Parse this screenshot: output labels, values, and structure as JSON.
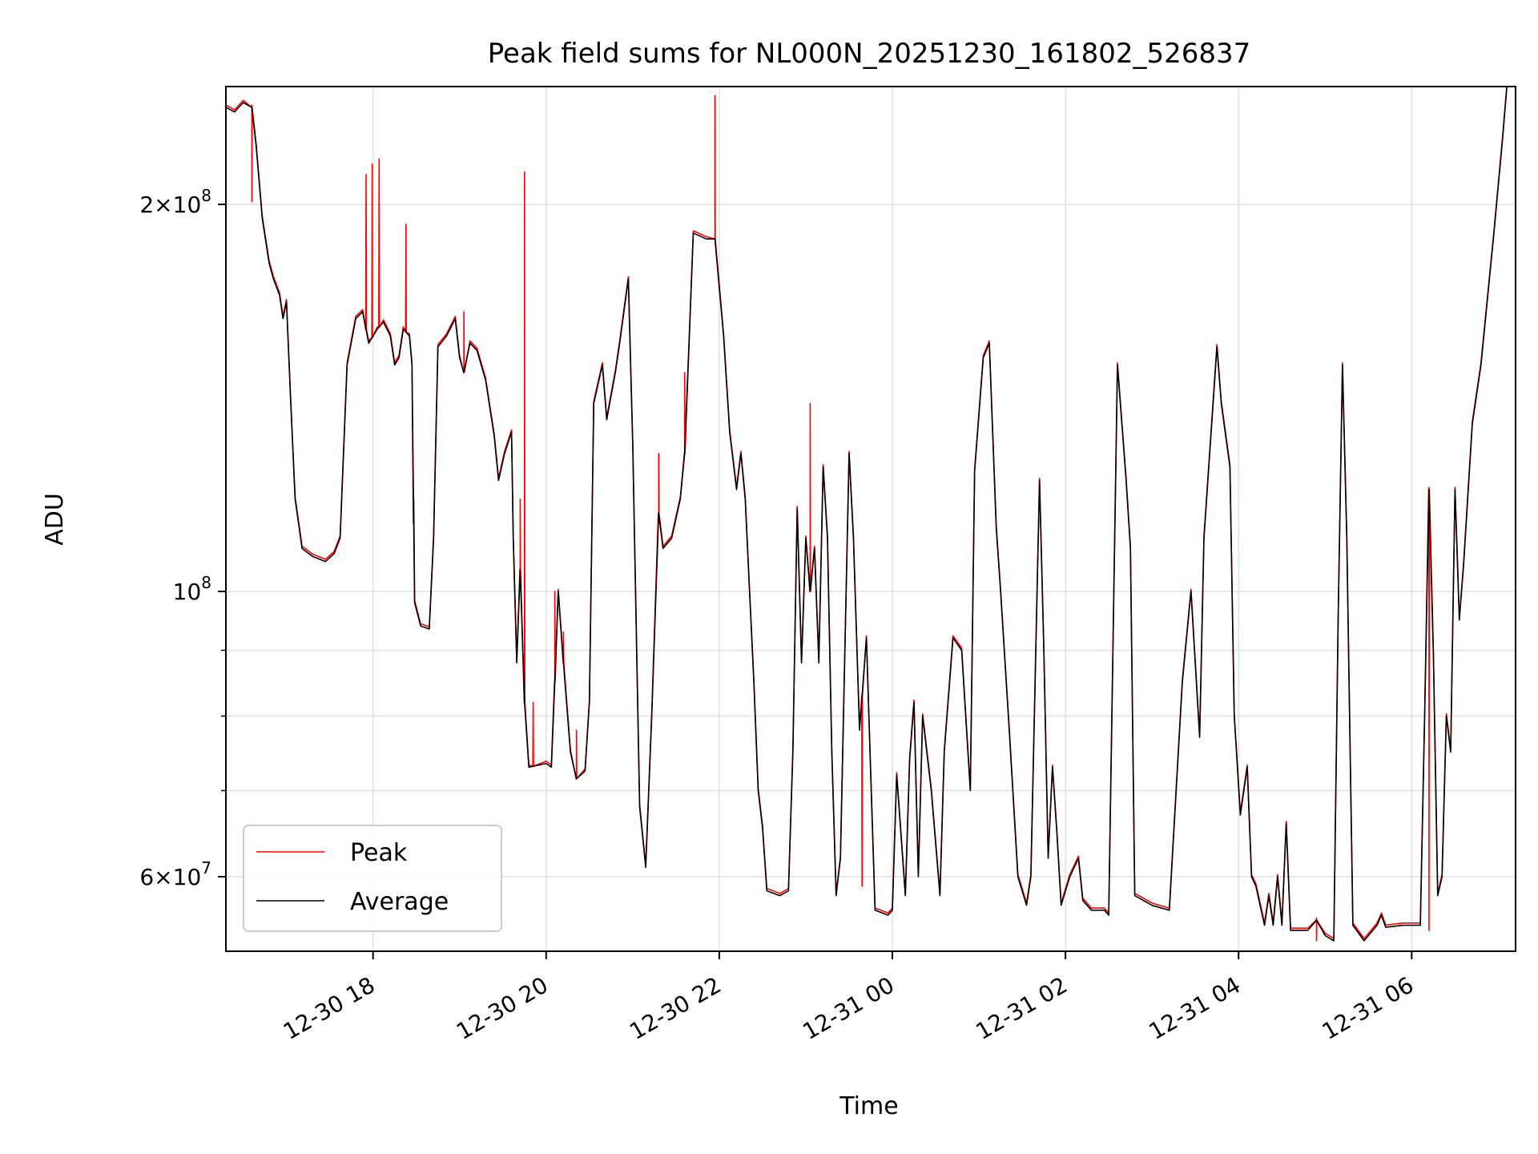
{
  "chart_data": {
    "type": "line",
    "title": "Peak field sums for NL000N_20251230_161802_526837",
    "xlabel": "Time",
    "ylabel": "ADU",
    "yscale": "log",
    "ylim": [
      52500000,
      247000000
    ],
    "xlim_hours": [
      16.3,
      31.2
    ],
    "grid": true,
    "legend_position": "lower-left",
    "x_ticks": [
      {
        "hour": 18,
        "label": "12-30 18"
      },
      {
        "hour": 20,
        "label": "12-30 20"
      },
      {
        "hour": 22,
        "label": "12-30 22"
      },
      {
        "hour": 24,
        "label": "12-31 00"
      },
      {
        "hour": 26,
        "label": "12-31 02"
      },
      {
        "hour": 28,
        "label": "12-31 04"
      },
      {
        "hour": 30,
        "label": "12-31 06"
      }
    ],
    "y_major_ticks": [
      {
        "value": 60000000,
        "base": "6",
        "exp": "7"
      },
      {
        "value": 100000000,
        "base": "10",
        "exp": "8"
      },
      {
        "value": 200000000,
        "base": "2",
        "exp": "8"
      }
    ],
    "y_minor_gridlines": [
      70000000,
      80000000,
      90000000
    ],
    "series": [
      {
        "name": "Peak",
        "color": "#ff0000",
        "spikes": [
          [
            16.6,
            201000000
          ],
          [
            17.92,
            211000000
          ],
          [
            17.99,
            215000000
          ],
          [
            18.07,
            217000000
          ],
          [
            18.38,
            193000000
          ],
          [
            18.47,
            118000000
          ],
          [
            19.05,
            165000000
          ],
          [
            19.7,
            118000000
          ],
          [
            19.75,
            212000000
          ],
          [
            19.85,
            82000000
          ],
          [
            20.1,
            100000000
          ],
          [
            20.2,
            93000000
          ],
          [
            20.35,
            78000000
          ],
          [
            21.3,
            128000000
          ],
          [
            21.6,
            148000000
          ],
          [
            21.95,
            243000000
          ],
          [
            23.05,
            140000000
          ],
          [
            23.65,
            59000000
          ],
          [
            28.9,
            53500000
          ],
          [
            30.2,
            54500000
          ]
        ]
      },
      {
        "name": "Average",
        "color": "#000000",
        "points": [
          [
            16.3,
            238000000
          ],
          [
            16.4,
            236000000
          ],
          [
            16.5,
            240000000
          ],
          [
            16.6,
            238000000
          ],
          [
            16.65,
            222000000
          ],
          [
            16.72,
            195000000
          ],
          [
            16.8,
            180000000
          ],
          [
            16.85,
            175000000
          ],
          [
            16.92,
            170000000
          ],
          [
            16.96,
            163000000
          ],
          [
            17.0,
            168000000
          ],
          [
            17.05,
            140000000
          ],
          [
            17.1,
            118000000
          ],
          [
            17.18,
            108000000
          ],
          [
            17.3,
            106500000
          ],
          [
            17.45,
            105500000
          ],
          [
            17.55,
            107000000
          ],
          [
            17.62,
            110000000
          ],
          [
            17.7,
            150000000
          ],
          [
            17.8,
            163000000
          ],
          [
            17.88,
            165000000
          ],
          [
            17.95,
            156000000
          ],
          [
            18.05,
            160000000
          ],
          [
            18.12,
            162000000
          ],
          [
            18.2,
            158000000
          ],
          [
            18.25,
            150000000
          ],
          [
            18.3,
            152000000
          ],
          [
            18.35,
            160000000
          ],
          [
            18.42,
            158000000
          ],
          [
            18.45,
            150000000
          ],
          [
            18.48,
            98000000
          ],
          [
            18.55,
            94000000
          ],
          [
            18.65,
            93500000
          ],
          [
            18.7,
            110000000
          ],
          [
            18.75,
            155000000
          ],
          [
            18.85,
            158000000
          ],
          [
            18.95,
            163000000
          ],
          [
            19.0,
            152000000
          ],
          [
            19.05,
            148000000
          ],
          [
            19.12,
            156000000
          ],
          [
            19.2,
            154000000
          ],
          [
            19.3,
            146000000
          ],
          [
            19.4,
            132000000
          ],
          [
            19.45,
            122000000
          ],
          [
            19.52,
            128000000
          ],
          [
            19.6,
            133000000
          ],
          [
            19.62,
            110000000
          ],
          [
            19.66,
            88000000
          ],
          [
            19.7,
            104000000
          ],
          [
            19.75,
            82000000
          ],
          [
            19.8,
            73000000
          ],
          [
            20.0,
            73500000
          ],
          [
            20.06,
            73000000
          ],
          [
            20.1,
            85000000
          ],
          [
            20.14,
            100000000
          ],
          [
            20.2,
            88000000
          ],
          [
            20.28,
            75000000
          ],
          [
            20.35,
            71500000
          ],
          [
            20.45,
            72500000
          ],
          [
            20.5,
            82000000
          ],
          [
            20.55,
            140000000
          ],
          [
            20.65,
            150000000
          ],
          [
            20.7,
            136000000
          ],
          [
            20.8,
            148000000
          ],
          [
            20.85,
            156000000
          ],
          [
            20.95,
            175000000
          ],
          [
            21.0,
            130000000
          ],
          [
            21.08,
            68000000
          ],
          [
            21.15,
            61000000
          ],
          [
            21.22,
            80000000
          ],
          [
            21.3,
            115000000
          ],
          [
            21.35,
            108000000
          ],
          [
            21.45,
            110000000
          ],
          [
            21.55,
            118000000
          ],
          [
            21.6,
            128000000
          ],
          [
            21.7,
            190000000
          ],
          [
            21.85,
            188000000
          ],
          [
            21.95,
            188000000
          ],
          [
            22.05,
            158000000
          ],
          [
            22.12,
            133000000
          ],
          [
            22.2,
            120000000
          ],
          [
            22.25,
            128000000
          ],
          [
            22.3,
            118000000
          ],
          [
            22.35,
            100000000
          ],
          [
            22.4,
            85000000
          ],
          [
            22.45,
            70000000
          ],
          [
            22.5,
            65500000
          ],
          [
            22.55,
            58500000
          ],
          [
            22.7,
            58000000
          ],
          [
            22.8,
            58500000
          ],
          [
            22.85,
            75000000
          ],
          [
            22.9,
            116000000
          ],
          [
            22.95,
            88000000
          ],
          [
            23.0,
            110000000
          ],
          [
            23.05,
            100000000
          ],
          [
            23.1,
            108000000
          ],
          [
            23.15,
            88000000
          ],
          [
            23.2,
            125000000
          ],
          [
            23.25,
            110000000
          ],
          [
            23.3,
            75000000
          ],
          [
            23.35,
            58000000
          ],
          [
            23.4,
            62000000
          ],
          [
            23.5,
            128000000
          ],
          [
            23.55,
            110000000
          ],
          [
            23.62,
            78000000
          ],
          [
            23.7,
            92000000
          ],
          [
            23.75,
            72000000
          ],
          [
            23.8,
            56500000
          ],
          [
            23.95,
            56000000
          ],
          [
            24.0,
            56500000
          ],
          [
            24.05,
            72000000
          ],
          [
            24.15,
            58000000
          ],
          [
            24.2,
            74000000
          ],
          [
            24.25,
            82000000
          ],
          [
            24.3,
            60000000
          ],
          [
            24.35,
            80000000
          ],
          [
            24.45,
            70000000
          ],
          [
            24.55,
            58000000
          ],
          [
            24.6,
            75000000
          ],
          [
            24.7,
            92000000
          ],
          [
            24.8,
            90000000
          ],
          [
            24.9,
            70000000
          ],
          [
            24.95,
            124000000
          ],
          [
            25.05,
            152000000
          ],
          [
            25.12,
            156000000
          ],
          [
            25.2,
            112000000
          ],
          [
            25.25,
            100000000
          ],
          [
            25.35,
            78000000
          ],
          [
            25.45,
            60000000
          ],
          [
            25.55,
            57000000
          ],
          [
            25.6,
            60000000
          ],
          [
            25.7,
            122000000
          ],
          [
            25.75,
            90000000
          ],
          [
            25.8,
            62000000
          ],
          [
            25.85,
            73000000
          ],
          [
            25.9,
            65000000
          ],
          [
            25.95,
            57000000
          ],
          [
            26.05,
            60000000
          ],
          [
            26.15,
            62000000
          ],
          [
            26.2,
            57500000
          ],
          [
            26.3,
            56500000
          ],
          [
            26.45,
            56500000
          ],
          [
            26.5,
            56000000
          ],
          [
            26.6,
            150000000
          ],
          [
            26.7,
            122000000
          ],
          [
            26.75,
            108000000
          ],
          [
            26.8,
            58000000
          ],
          [
            27.0,
            57000000
          ],
          [
            27.2,
            56500000
          ],
          [
            27.35,
            85000000
          ],
          [
            27.45,
            100000000
          ],
          [
            27.55,
            77000000
          ],
          [
            27.6,
            110000000
          ],
          [
            27.75,
            155000000
          ],
          [
            27.8,
            140000000
          ],
          [
            27.9,
            125000000
          ],
          [
            27.95,
            80000000
          ],
          [
            28.02,
            67000000
          ],
          [
            28.1,
            73000000
          ],
          [
            28.15,
            60000000
          ],
          [
            28.2,
            59000000
          ],
          [
            28.3,
            55000000
          ],
          [
            28.35,
            58000000
          ],
          [
            28.4,
            55000000
          ],
          [
            28.45,
            60000000
          ],
          [
            28.5,
            55000000
          ],
          [
            28.55,
            66000000
          ],
          [
            28.6,
            54500000
          ],
          [
            28.8,
            54500000
          ],
          [
            28.9,
            55500000
          ],
          [
            29.0,
            54000000
          ],
          [
            29.1,
            53500000
          ],
          [
            29.15,
            95000000
          ],
          [
            29.2,
            150000000
          ],
          [
            29.25,
            110000000
          ],
          [
            29.32,
            55000000
          ],
          [
            29.45,
            53500000
          ],
          [
            29.6,
            55000000
          ],
          [
            29.65,
            56000000
          ],
          [
            29.7,
            54800000
          ],
          [
            29.9,
            55000000
          ],
          [
            30.1,
            55000000
          ],
          [
            30.15,
            80000000
          ],
          [
            30.2,
            120000000
          ],
          [
            30.25,
            90000000
          ],
          [
            30.3,
            58000000
          ],
          [
            30.35,
            60000000
          ],
          [
            30.4,
            80000000
          ],
          [
            30.45,
            75000000
          ],
          [
            30.5,
            120000000
          ],
          [
            30.55,
            95000000
          ],
          [
            30.6,
            105000000
          ],
          [
            30.7,
            135000000
          ],
          [
            30.8,
            150000000
          ],
          [
            30.95,
            190000000
          ],
          [
            31.05,
            225000000
          ],
          [
            31.1,
            247000000
          ]
        ]
      }
    ]
  }
}
